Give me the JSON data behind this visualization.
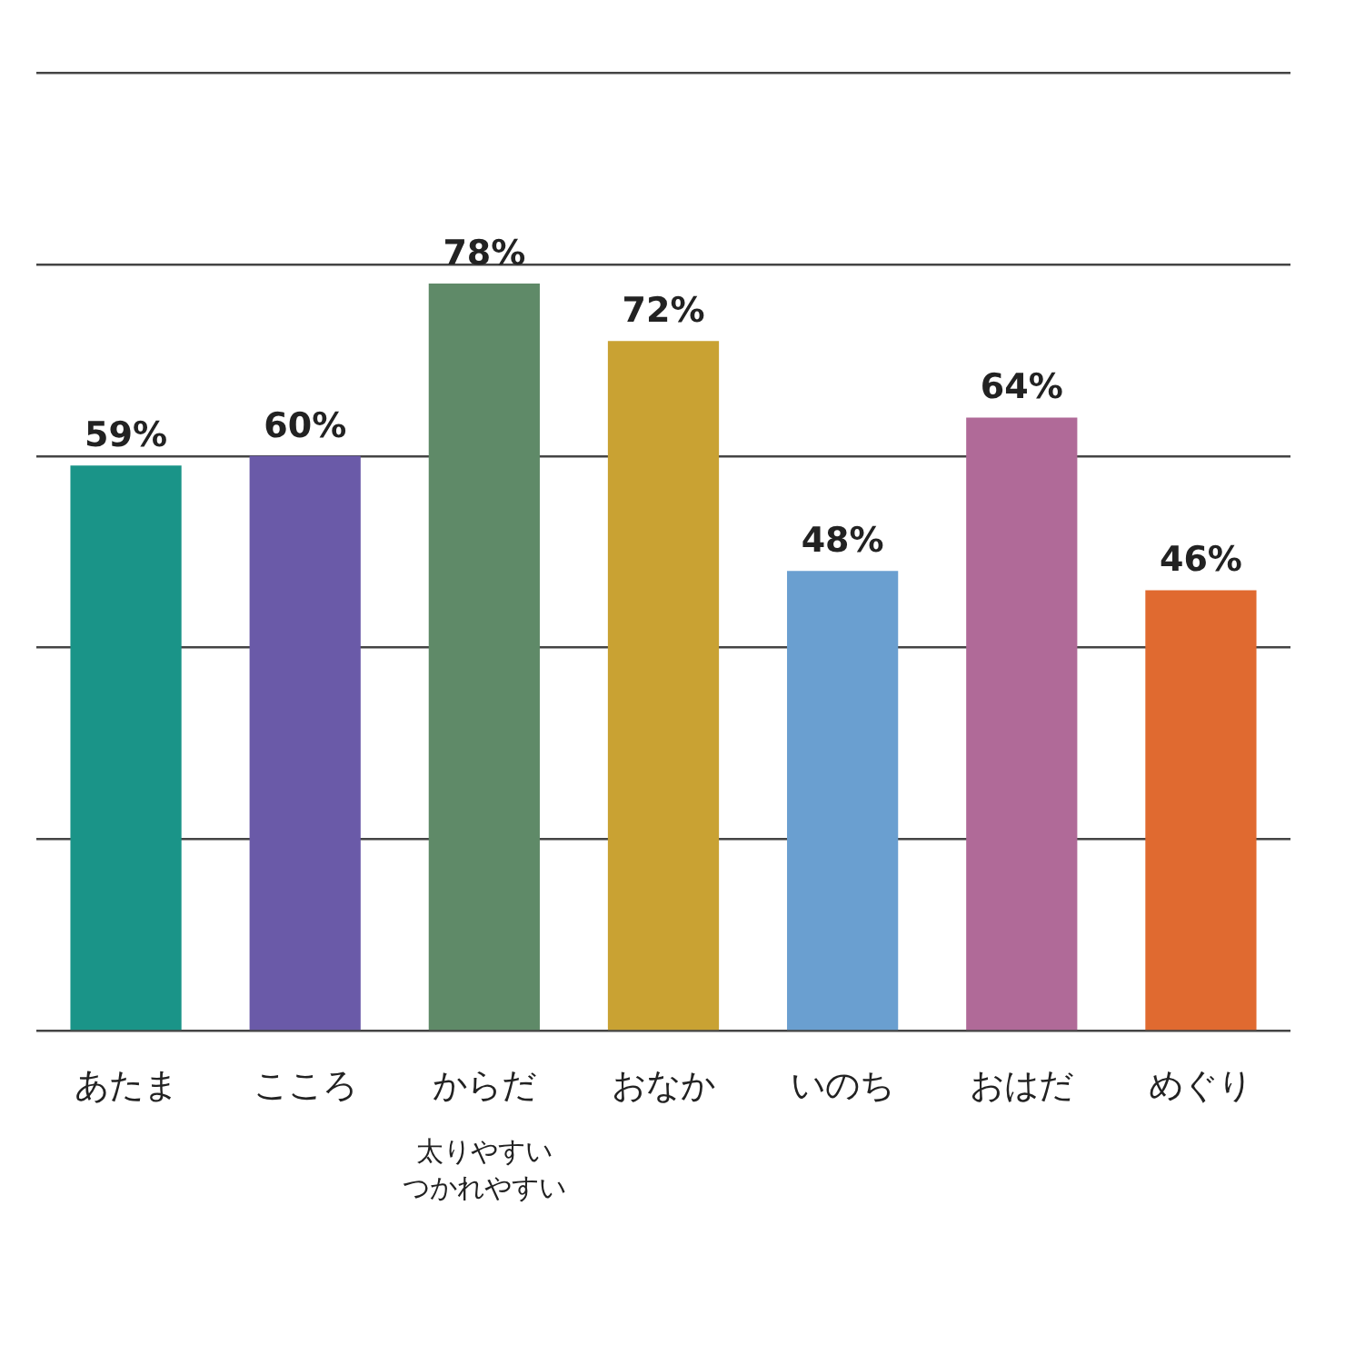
{
  "chart_data": {
    "type": "bar",
    "categories": [
      "あたま",
      "こころ",
      "からだ",
      "おなか",
      "いのち",
      "おはだ",
      "めぐり"
    ],
    "values": [
      59,
      60,
      78,
      72,
      48,
      64,
      46
    ],
    "colors": [
      "#1a9488",
      "#6a5aa8",
      "#5f8a68",
      "#c9a233",
      "#6a9fd0",
      "#b06a98",
      "#e06a30"
    ],
    "value_labels": [
      "59%",
      "60%",
      "78%",
      "72%",
      "48%",
      "64%",
      "46%"
    ],
    "ylim": [
      0,
      100
    ],
    "yticks": [
      {
        "value": 0,
        "label": null
      },
      {
        "value": 20,
        "label": null
      },
      {
        "value": 40,
        "label": null
      },
      {
        "value": 60,
        "label": null
      },
      {
        "value": 80,
        "label": null
      },
      {
        "value": 100,
        "label": null
      }
    ],
    "grid": "y",
    "tick_labels": "x",
    "legend": false,
    "annotations": [
      "太りやすい",
      "つかれやすい"
    ]
  }
}
